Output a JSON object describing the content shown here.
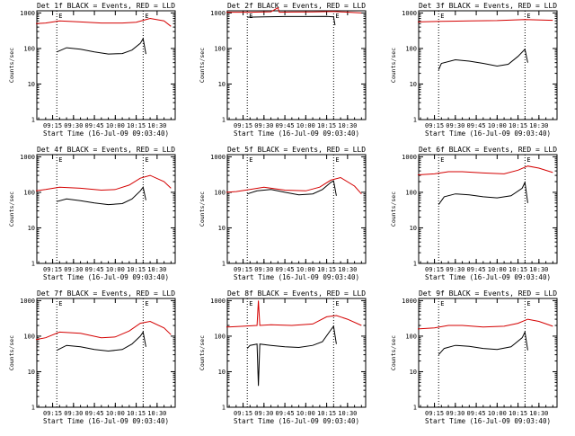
{
  "chart_data": [
    {
      "type": "line",
      "title": "Det 1f BLACK = Events, RED = LLD",
      "xlabel": "Start Time (16-Jul-09 09:03:40)",
      "ylabel": "Counts/sec",
      "x_ticks": [
        "09:15",
        "09:30",
        "09:45",
        "10:00",
        "10:15",
        "10:30"
      ],
      "y_ticks": [
        "1",
        "10",
        "100",
        "1000"
      ],
      "yscale": "log",
      "ylim": [
        1,
        1000
      ],
      "markers": [
        "09:18",
        "10:20"
      ],
      "marker_labels": [
        "E",
        "E"
      ],
      "series": [
        {
          "name": "Events",
          "color": "#000000",
          "x": [
            "09:18",
            "09:25",
            "09:35",
            "09:45",
            "09:55",
            "10:05",
            "10:12",
            "10:18",
            "10:20",
            "10:22"
          ],
          "y": [
            80,
            105,
            95,
            80,
            70,
            72,
            90,
            140,
            190,
            70
          ]
        },
        {
          "name": "LLD",
          "color": "#d40000",
          "x": [
            "09:03",
            "09:10",
            "09:20",
            "09:35",
            "09:50",
            "10:05",
            "10:15",
            "10:25",
            "10:35",
            "10:40"
          ],
          "y": [
            500,
            520,
            600,
            560,
            520,
            520,
            550,
            700,
            600,
            420
          ]
        }
      ]
    },
    {
      "type": "line",
      "title": "Det 2f BLACK = Events, RED = LLD",
      "xlabel": "Start Time (16-Jul-09 09:03:40)",
      "ylabel": "Counts/sec",
      "x_ticks": [
        "09:15",
        "09:30",
        "09:45",
        "10:00",
        "10:15",
        "10:30"
      ],
      "y_ticks": [
        "1",
        "10",
        "100",
        "1000"
      ],
      "yscale": "log",
      "ylim": [
        1,
        1000
      ],
      "markers": [
        "09:18",
        "10:20"
      ],
      "marker_labels": [
        "E",
        "E"
      ],
      "series": [
        {
          "name": "Events",
          "color": "#000000",
          "x": [
            "09:18",
            "09:30",
            "09:45",
            "10:00",
            "10:15",
            "10:20",
            "10:21"
          ],
          "y": [
            760,
            780,
            790,
            790,
            800,
            780,
            450
          ]
        },
        {
          "name": "LLD",
          "color": "#d40000",
          "x": [
            "09:03",
            "09:20",
            "09:35",
            "09:40",
            "09:41",
            "09:50",
            "10:05",
            "10:20",
            "10:40"
          ],
          "y": [
            1050,
            1050,
            1080,
            1400,
            1050,
            1060,
            1070,
            1100,
            1000
          ]
        }
      ]
    },
    {
      "type": "line",
      "title": "Det 3f BLACK = Events, RED = LLD",
      "xlabel": "Start Time (16-Jul-09 09:03:40)",
      "ylabel": "Counts/sec",
      "x_ticks": [
        "09:15",
        "09:30",
        "09:45",
        "10:00",
        "10:15",
        "10:30"
      ],
      "y_ticks": [
        "1",
        "10",
        "100",
        "1000"
      ],
      "yscale": "log",
      "ylim": [
        1,
        1000
      ],
      "markers": [
        "09:18",
        "10:20"
      ],
      "marker_labels": [
        "E",
        "E"
      ],
      "series": [
        {
          "name": "Events",
          "color": "#000000",
          "x": [
            "09:18",
            "09:20",
            "09:30",
            "09:40",
            "09:50",
            "10:00",
            "10:08",
            "10:15",
            "10:20",
            "10:22"
          ],
          "y": [
            25,
            38,
            48,
            44,
            38,
            32,
            36,
            60,
            95,
            40
          ]
        },
        {
          "name": "LLD",
          "color": "#d40000",
          "x": [
            "09:03",
            "09:20",
            "09:40",
            "10:00",
            "10:20",
            "10:40"
          ],
          "y": [
            560,
            580,
            600,
            610,
            650,
            620
          ]
        }
      ]
    },
    {
      "type": "line",
      "title": "Det 4f BLACK = Events, RED = LLD",
      "xlabel": "Start Time (16-Jul-09 09:03:40)",
      "ylabel": "Counts/sec",
      "x_ticks": [
        "09:15",
        "09:30",
        "09:45",
        "10:00",
        "10:15",
        "10:30"
      ],
      "y_ticks": [
        "1",
        "10",
        "100",
        "1000"
      ],
      "yscale": "log",
      "ylim": [
        1,
        1000
      ],
      "markers": [
        "09:18",
        "10:20"
      ],
      "marker_labels": [
        "E",
        "E"
      ],
      "series": [
        {
          "name": "Events",
          "color": "#000000",
          "x": [
            "09:18",
            "09:25",
            "09:35",
            "09:45",
            "09:55",
            "10:05",
            "10:12",
            "10:18",
            "10:20",
            "10:22"
          ],
          "y": [
            55,
            65,
            58,
            50,
            45,
            48,
            65,
            110,
            140,
            60
          ]
        },
        {
          "name": "LLD",
          "color": "#d40000",
          "x": [
            "09:03",
            "09:10",
            "09:20",
            "09:35",
            "09:50",
            "10:00",
            "10:10",
            "10:18",
            "10:25",
            "10:35",
            "10:40"
          ],
          "y": [
            110,
            120,
            140,
            130,
            115,
            120,
            160,
            250,
            300,
            200,
            130
          ]
        }
      ]
    },
    {
      "type": "line",
      "title": "Det 5f BLACK = Events, RED = LLD",
      "xlabel": "Start Time (16-Jul-09 09:03:40)",
      "ylabel": "Counts/sec",
      "x_ticks": [
        "09:15",
        "09:30",
        "09:45",
        "10:00",
        "10:15",
        "10:30"
      ],
      "y_ticks": [
        "1",
        "10",
        "100",
        "1000"
      ],
      "yscale": "log",
      "ylim": [
        1,
        1000
      ],
      "markers": [
        "09:18",
        "10:20"
      ],
      "marker_labels": [
        "E",
        "E"
      ],
      "series": [
        {
          "name": "Events",
          "color": "#000000",
          "x": [
            "09:18",
            "09:25",
            "09:35",
            "09:45",
            "09:55",
            "10:05",
            "10:12",
            "10:18",
            "10:20",
            "10:22"
          ],
          "y": [
            90,
            110,
            120,
            100,
            85,
            90,
            120,
            190,
            210,
            80
          ]
        },
        {
          "name": "LLD",
          "color": "#d40000",
          "x": [
            "09:03",
            "09:10",
            "09:20",
            "09:30",
            "09:45",
            "10:00",
            "10:10",
            "10:18",
            "10:25",
            "10:35",
            "10:40"
          ],
          "y": [
            100,
            105,
            120,
            140,
            115,
            110,
            140,
            220,
            260,
            150,
            90
          ]
        }
      ]
    },
    {
      "type": "line",
      "title": "Det 6f BLACK = Events, RED = LLD",
      "xlabel": "Start Time (16-Jul-09 09:03:40)",
      "ylabel": "Counts/sec",
      "x_ticks": [
        "09:15",
        "09:30",
        "09:45",
        "10:00",
        "10:15",
        "10:30"
      ],
      "y_ticks": [
        "1",
        "10",
        "100",
        "1000"
      ],
      "yscale": "log",
      "ylim": [
        1,
        1000
      ],
      "markers": [
        "09:18",
        "10:20"
      ],
      "marker_labels": [
        "E",
        "E"
      ],
      "series": [
        {
          "name": "Events",
          "color": "#000000",
          "x": [
            "09:18",
            "09:22",
            "09:30",
            "09:40",
            "09:50",
            "10:00",
            "10:10",
            "10:18",
            "10:20",
            "10:22"
          ],
          "y": [
            45,
            75,
            90,
            85,
            75,
            70,
            80,
            130,
            190,
            50
          ]
        },
        {
          "name": "LLD",
          "color": "#d40000",
          "x": [
            "09:03",
            "09:15",
            "09:25",
            "09:35",
            "09:50",
            "10:05",
            "10:15",
            "10:22",
            "10:30",
            "10:40"
          ],
          "y": [
            310,
            330,
            380,
            380,
            350,
            330,
            420,
            550,
            480,
            360
          ]
        }
      ]
    },
    {
      "type": "line",
      "title": "Det 7f BLACK = Events, RED = LLD",
      "xlabel": "Start Time (16-Jul-09 09:03:40)",
      "ylabel": "Counts/sec",
      "x_ticks": [
        "09:15",
        "09:30",
        "09:45",
        "10:00",
        "10:15",
        "10:30"
      ],
      "y_ticks": [
        "1",
        "10",
        "100",
        "1000"
      ],
      "yscale": "log",
      "ylim": [
        1,
        1000
      ],
      "markers": [
        "09:18",
        "10:20"
      ],
      "marker_labels": [
        "E",
        "E"
      ],
      "series": [
        {
          "name": "Events",
          "color": "#000000",
          "x": [
            "09:18",
            "09:25",
            "09:35",
            "09:45",
            "09:55",
            "10:05",
            "10:12",
            "10:18",
            "10:20",
            "10:22"
          ],
          "y": [
            40,
            55,
            50,
            42,
            38,
            42,
            60,
            100,
            130,
            50
          ]
        },
        {
          "name": "LLD",
          "color": "#d40000",
          "x": [
            "09:03",
            "09:10",
            "09:20",
            "09:35",
            "09:50",
            "10:00",
            "10:10",
            "10:18",
            "10:25",
            "10:35",
            "10:40"
          ],
          "y": [
            80,
            90,
            130,
            120,
            90,
            95,
            140,
            230,
            260,
            170,
            110
          ]
        }
      ]
    },
    {
      "type": "line",
      "title": "Det 8f BLACK = Events, RED = LLD",
      "xlabel": "Start Time (16-Jul-09 09:03:40)",
      "ylabel": "Counts/sec",
      "x_ticks": [
        "09:15",
        "09:30",
        "09:45",
        "10:00",
        "10:15",
        "10:30"
      ],
      "y_ticks": [
        "1",
        "10",
        "100",
        "1000"
      ],
      "yscale": "log",
      "ylim": [
        1,
        1000
      ],
      "markers": [
        "09:18",
        "10:20"
      ],
      "marker_labels": [
        "E",
        "E"
      ],
      "series": [
        {
          "name": "Events",
          "color": "#000000",
          "x": [
            "09:18",
            "09:20",
            "09:25",
            "09:26",
            "09:27",
            "09:35",
            "09:45",
            "09:55",
            "10:05",
            "10:12",
            "10:18",
            "10:20",
            "10:22"
          ],
          "y": [
            45,
            55,
            60,
            4,
            60,
            55,
            50,
            48,
            55,
            70,
            150,
            190,
            60
          ]
        },
        {
          "name": "LLD",
          "color": "#d40000",
          "x": [
            "09:03",
            "09:15",
            "09:25",
            "09:26",
            "09:27",
            "09:35",
            "09:50",
            "10:05",
            "10:15",
            "10:22",
            "10:30",
            "10:40"
          ],
          "y": [
            180,
            190,
            200,
            1000,
            200,
            210,
            200,
            220,
            350,
            380,
            300,
            200
          ]
        }
      ]
    },
    {
      "type": "line",
      "title": "Det 9f BLACK = Events, RED = LLD",
      "xlabel": "Start Time (16-Jul-09 09:03:40)",
      "ylabel": "Counts/sec",
      "x_ticks": [
        "09:15",
        "09:30",
        "09:45",
        "10:00",
        "10:15",
        "10:30"
      ],
      "y_ticks": [
        "1",
        "10",
        "100",
        "1000"
      ],
      "yscale": "log",
      "ylim": [
        1,
        1000
      ],
      "markers": [
        "09:18",
        "10:20"
      ],
      "marker_labels": [
        "E",
        "E"
      ],
      "series": [
        {
          "name": "Events",
          "color": "#000000",
          "x": [
            "09:18",
            "09:22",
            "09:30",
            "09:40",
            "09:50",
            "10:00",
            "10:10",
            "10:18",
            "10:20",
            "10:22"
          ],
          "y": [
            30,
            45,
            55,
            52,
            45,
            42,
            50,
            90,
            130,
            40
          ]
        },
        {
          "name": "LLD",
          "color": "#d40000",
          "x": [
            "09:03",
            "09:15",
            "09:25",
            "09:35",
            "09:50",
            "10:05",
            "10:15",
            "10:22",
            "10:30",
            "10:40"
          ],
          "y": [
            160,
            170,
            200,
            200,
            180,
            190,
            230,
            300,
            260,
            190
          ]
        }
      ]
    }
  ]
}
